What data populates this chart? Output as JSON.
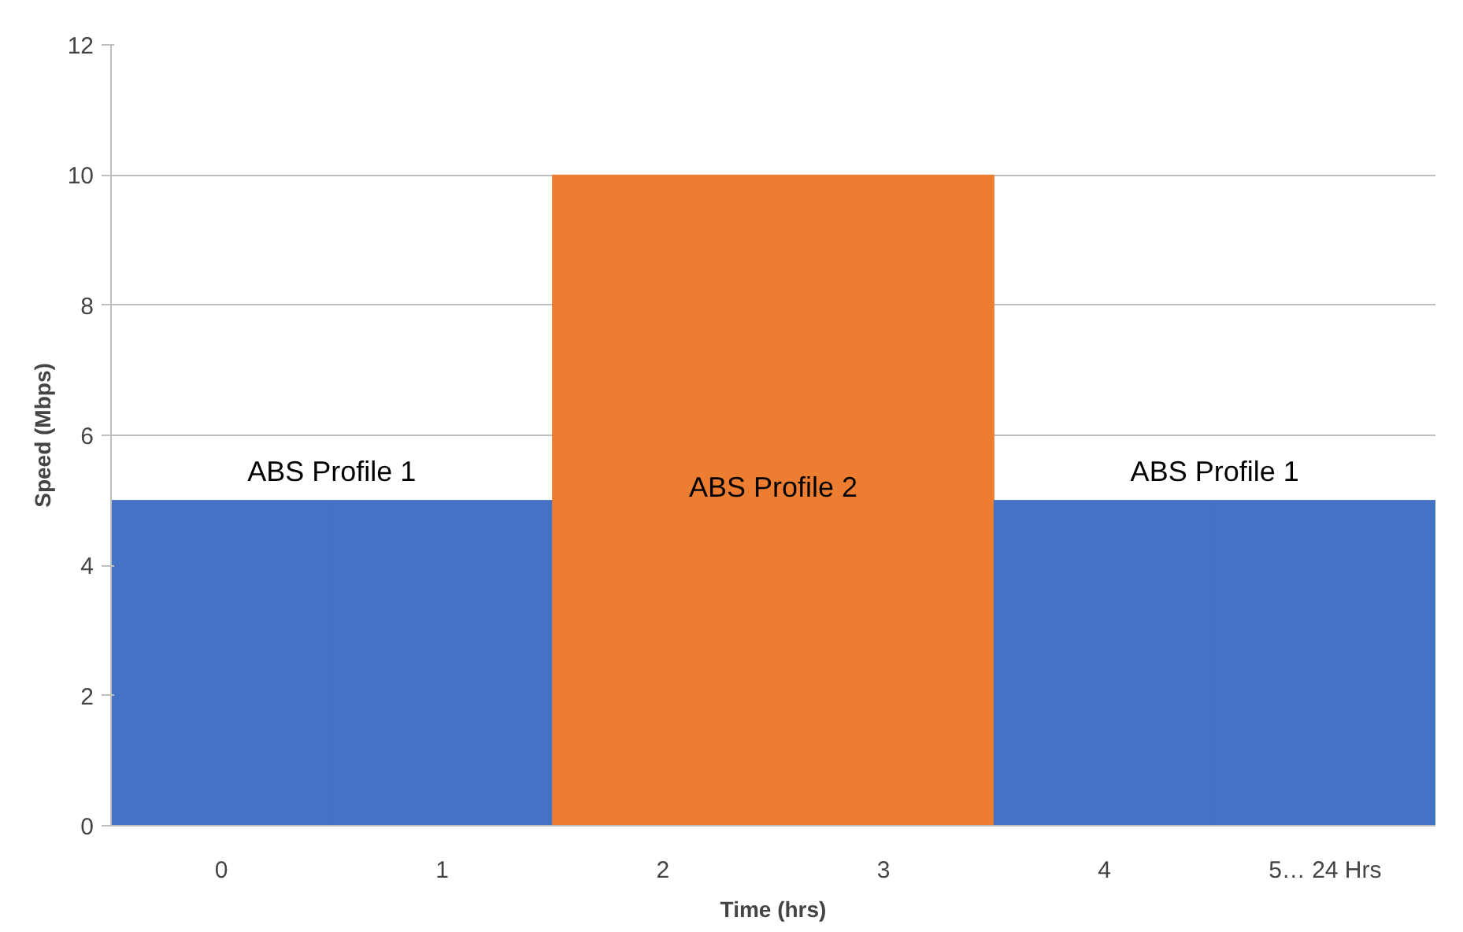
{
  "chart_data": {
    "type": "bar",
    "categories": [
      "0",
      "1",
      "2",
      "3",
      "4",
      "5… 24 Hrs"
    ],
    "values": [
      5,
      5,
      10,
      10,
      5,
      5
    ],
    "colors": [
      "#4472c4",
      "#4472c4",
      "#ed7d31",
      "#ed7d31",
      "#4472c4",
      "#4472c4"
    ],
    "xlabel": "Time (hrs)",
    "ylabel": "Speed (Mbps)",
    "ylim": [
      0,
      12
    ],
    "yticks": [
      0,
      2,
      4,
      6,
      8,
      10,
      12
    ],
    "grid": "y",
    "annotations": [
      "ABS Profile 1",
      "ABS Profile 2",
      "ABS Profile 1"
    ]
  }
}
